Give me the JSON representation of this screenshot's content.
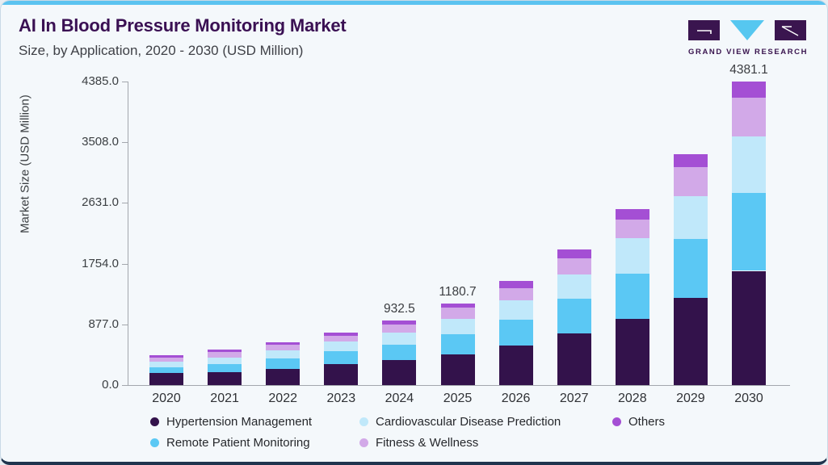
{
  "header": {
    "title": "AI In Blood Pressure Monitoring Market",
    "subtitle": "Size, by Application, 2020 - 2030 (USD Million)"
  },
  "logo": {
    "name": "grand-view-research-logo",
    "text": "GRAND VIEW RESEARCH",
    "colors": {
      "dark": "#3a154f",
      "blue": "#56c7f0"
    }
  },
  "chart_data": {
    "type": "bar",
    "stacked": true,
    "title": "AI In Blood Pressure Monitoring Market Size, by Application, 2020 - 2030 (USD Million)",
    "categories": [
      "2020",
      "2021",
      "2022",
      "2023",
      "2024",
      "2025",
      "2026",
      "2027",
      "2028",
      "2029",
      "2030"
    ],
    "series": [
      {
        "name": "Hypertension Management",
        "color": "#33124b",
        "values": [
          174,
          186,
          229,
          302,
          357.5,
          448.7,
          572,
          746,
          953,
          1255,
          1650.1
        ]
      },
      {
        "name": "Remote Patient Monitoring",
        "color": "#5bc8f4",
        "values": [
          87,
          112,
          153,
          186,
          227,
          290,
          369,
          501,
          655,
          861,
          1127
        ]
      },
      {
        "name": "Cardiovascular Disease Prediction",
        "color": "#c0e8fa",
        "values": [
          75,
          104,
          116,
          137,
          174,
          215,
          282,
          348,
          510,
          609,
          817
        ]
      },
      {
        "name": "Fitness & Wellness",
        "color": "#d2a9e8",
        "values": [
          62,
          75,
          80,
          87,
          112,
          165,
          174,
          232,
          277,
          427,
          563
        ]
      },
      {
        "name": "Others",
        "color": "#a44fd4",
        "values": [
          37,
          37,
          41,
          46,
          62,
          62,
          108,
          133,
          153,
          182,
          224
        ]
      }
    ],
    "totals_labeled": [
      {
        "category": "2024",
        "text": "932.5"
      },
      {
        "category": "2025",
        "text": "1180.7"
      },
      {
        "category": "2030",
        "text": "4381.1"
      }
    ],
    "xlabel": "",
    "ylabel": "Market Size (USD Million)",
    "yticks": [
      "0.0",
      "877.0",
      "1754.0",
      "2631.0",
      "3508.0",
      "4385.0"
    ],
    "ylim": [
      0,
      4385
    ],
    "grid": false,
    "legend_position": "bottom"
  },
  "legend": {
    "columns": [
      [
        0,
        1
      ],
      [
        2,
        3
      ],
      [
        4
      ]
    ]
  }
}
